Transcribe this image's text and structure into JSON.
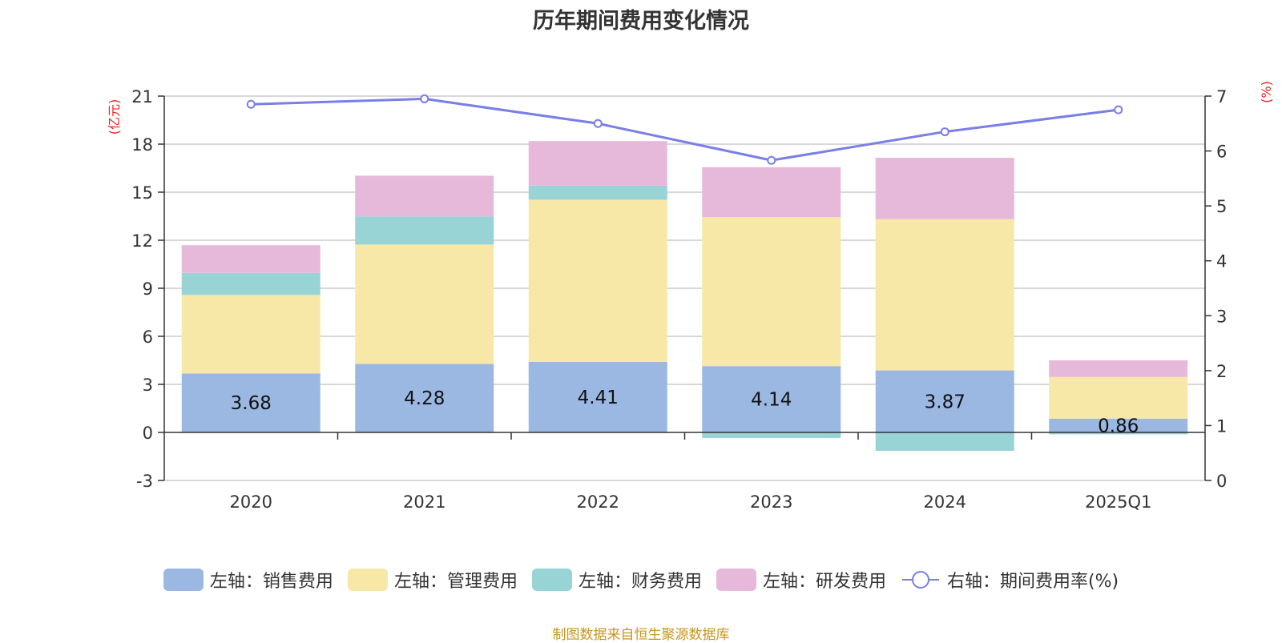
{
  "chart_data": {
    "type": "bar",
    "title": "历年期间费用变化情况",
    "categories": [
      "2020",
      "2021",
      "2022",
      "2023",
      "2024",
      "2025Q1"
    ],
    "series": [
      {
        "name": "左轴：销售费用",
        "axis": "left",
        "color": "#9bb8e2",
        "values": [
          3.68,
          4.28,
          4.41,
          4.14,
          3.87,
          0.86
        ],
        "labels": [
          "3.68",
          "4.28",
          "4.41",
          "4.14",
          "3.87",
          "0.86"
        ]
      },
      {
        "name": "左轴：管理费用",
        "axis": "left",
        "color": "#f7e8a8",
        "values": [
          4.9,
          7.45,
          10.12,
          9.3,
          9.45,
          2.6
        ]
      },
      {
        "name": "左轴：财务费用",
        "axis": "left",
        "color": "#98d4d6",
        "values": [
          1.38,
          1.75,
          0.88,
          -0.35,
          -1.15,
          -0.12
        ]
      },
      {
        "name": "左轴：研发费用",
        "axis": "left",
        "color": "#e6b9da",
        "values": [
          1.73,
          2.55,
          2.78,
          3.12,
          3.83,
          1.04
        ]
      }
    ],
    "line_series": {
      "name": "右轴：期间费用率(%)",
      "axis": "right",
      "color": "#7a7ee8",
      "values": [
        6.85,
        6.95,
        6.5,
        5.83,
        6.35,
        6.75
      ]
    },
    "left_axis": {
      "unit": "(亿元)",
      "ylim": [
        -3,
        21
      ],
      "ticks": [
        -3,
        0,
        3,
        6,
        9,
        12,
        15,
        18,
        21
      ]
    },
    "right_axis": {
      "unit": "(%)",
      "ylim": [
        0,
        7
      ],
      "ticks": [
        0,
        1,
        2,
        3,
        4,
        5,
        6,
        7
      ]
    },
    "grid": true,
    "legend_position": "bottom"
  },
  "source_note": "制图数据来自恒生聚源数据库"
}
